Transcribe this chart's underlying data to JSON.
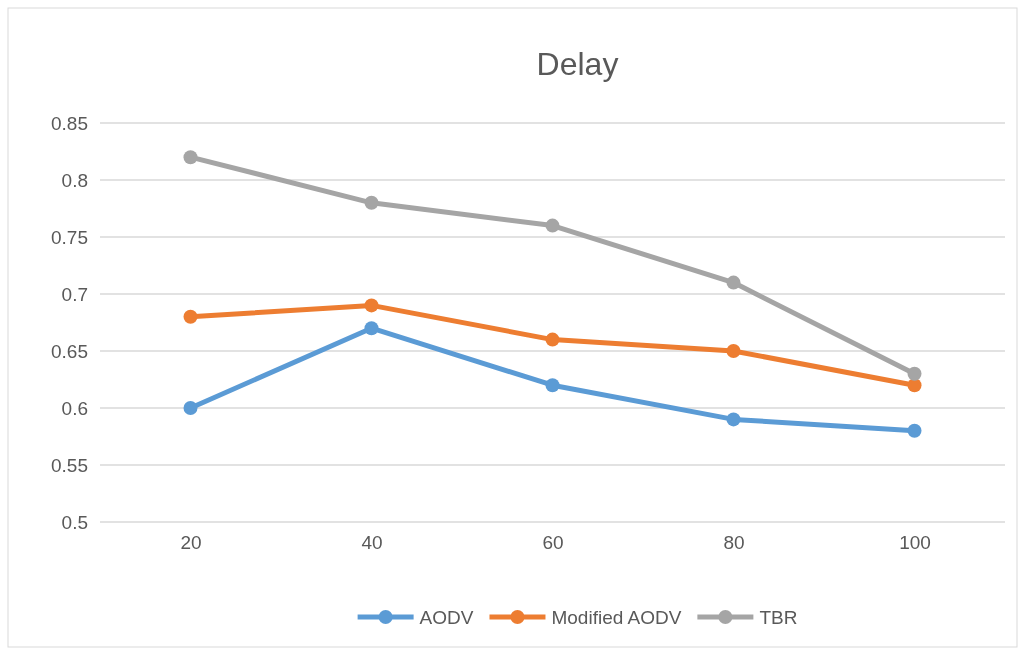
{
  "chart_data": {
    "type": "line",
    "title": "Delay",
    "categories": [
      "20",
      "40",
      "60",
      "80",
      "100"
    ],
    "series": [
      {
        "name": "AODV",
        "color": "#5b9bd5",
        "values": [
          0.6,
          0.67,
          0.62,
          0.59,
          0.58
        ]
      },
      {
        "name": "Modified AODV",
        "color": "#ed7d31",
        "values": [
          0.68,
          0.69,
          0.66,
          0.65,
          0.62
        ]
      },
      {
        "name": "TBR",
        "color": "#a5a5a5",
        "values": [
          0.82,
          0.78,
          0.76,
          0.71,
          0.63
        ]
      }
    ],
    "ylim": [
      0.5,
      0.85
    ],
    "yticks": [
      0.5,
      0.55,
      0.6,
      0.65,
      0.7,
      0.75,
      0.8,
      0.85
    ],
    "grid": "y",
    "legend": "bottom",
    "marker": "circle",
    "line_style": "solid"
  }
}
